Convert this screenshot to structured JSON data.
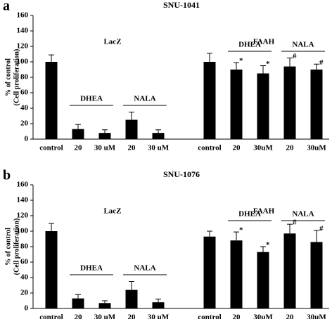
{
  "chart_data": [
    {
      "type": "bar",
      "panel_label": "a",
      "title": "SNU-1041",
      "y_label": [
        "% of control",
        "(Cell proliferation)"
      ],
      "categories": [
        "control",
        "20",
        "30 uM",
        "20",
        "30 uM",
        "control",
        "20",
        "30uM",
        "20",
        "30uM"
      ],
      "values": [
        100,
        13,
        8,
        25,
        8,
        100,
        90,
        85,
        94,
        90
      ],
      "errors": [
        9,
        6,
        4,
        10,
        4,
        11,
        9,
        10,
        11,
        7
      ],
      "markers": [
        null,
        null,
        null,
        null,
        null,
        null,
        "*",
        "*",
        "#",
        "#"
      ],
      "groups": [
        "LacZ",
        "FAAH"
      ],
      "brackets": [
        {
          "label": "DHEA",
          "categories": [
            1,
            2
          ]
        },
        {
          "label": "NALA",
          "categories": [
            3,
            4
          ]
        },
        {
          "label": "DHEA",
          "categories": [
            6,
            7
          ]
        },
        {
          "label": "NALA",
          "categories": [
            8,
            9
          ]
        }
      ],
      "color": "#000000",
      "ylim": [
        0,
        160
      ],
      "yticks": [
        0,
        20,
        40,
        60,
        80,
        100,
        120,
        140,
        160
      ]
    },
    {
      "type": "bar",
      "panel_label": "b",
      "title": "SNU-1076",
      "y_label": [
        "% of control",
        "(Cell proliferation)"
      ],
      "categories": [
        "control",
        "20",
        "30 uM",
        "20",
        "30 uM",
        "control",
        "20",
        "30uM",
        "20",
        "30uM"
      ],
      "values": [
        100,
        13,
        7,
        24,
        8,
        93,
        88,
        73,
        97,
        86
      ],
      "errors": [
        10,
        5,
        3,
        11,
        4,
        7,
        11,
        7,
        12,
        15
      ],
      "markers": [
        null,
        null,
        null,
        null,
        null,
        null,
        "*",
        "*",
        "#",
        "#"
      ],
      "groups": [
        "LacZ",
        "FAAH"
      ],
      "brackets": [
        {
          "label": "DHEA",
          "categories": [
            1,
            2
          ]
        },
        {
          "label": "NALA",
          "categories": [
            3,
            4
          ]
        },
        {
          "label": "DHEA",
          "categories": [
            6,
            7
          ]
        },
        {
          "label": "NALA",
          "categories": [
            8,
            9
          ]
        }
      ],
      "color": "#000000",
      "ylim": [
        0,
        160
      ],
      "yticks": [
        0,
        20,
        40,
        60,
        80,
        100,
        120,
        140,
        160
      ]
    }
  ]
}
